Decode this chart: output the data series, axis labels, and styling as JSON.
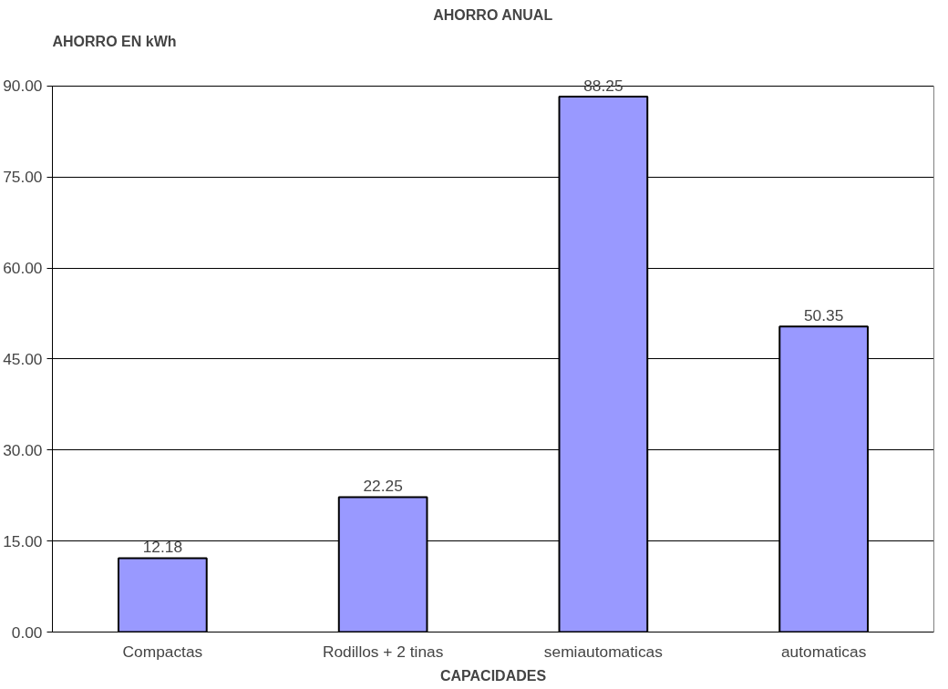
{
  "chart_data": {
    "type": "bar",
    "title": "AHORRO ANUAL",
    "ylabel": "AHORRO EN kWh",
    "xlabel": "CAPACIDADES",
    "categories": [
      "Compactas",
      "Rodillos + 2 tinas",
      "semiautomaticas",
      "automaticas"
    ],
    "values": [
      12.18,
      22.25,
      88.25,
      50.35
    ],
    "color": "#9999ff",
    "ylim": [
      0,
      90
    ],
    "yticks": [
      {
        "value": 0,
        "label": "0.00"
      },
      {
        "value": 15,
        "label": "15.00"
      },
      {
        "value": 30,
        "label": "30.00"
      },
      {
        "value": 45,
        "label": "45.00"
      },
      {
        "value": 60,
        "label": "60.00"
      },
      {
        "value": 75,
        "label": "75.00"
      },
      {
        "value": 90,
        "label": "90.00"
      }
    ],
    "grid": "y",
    "data_labels": true
  }
}
